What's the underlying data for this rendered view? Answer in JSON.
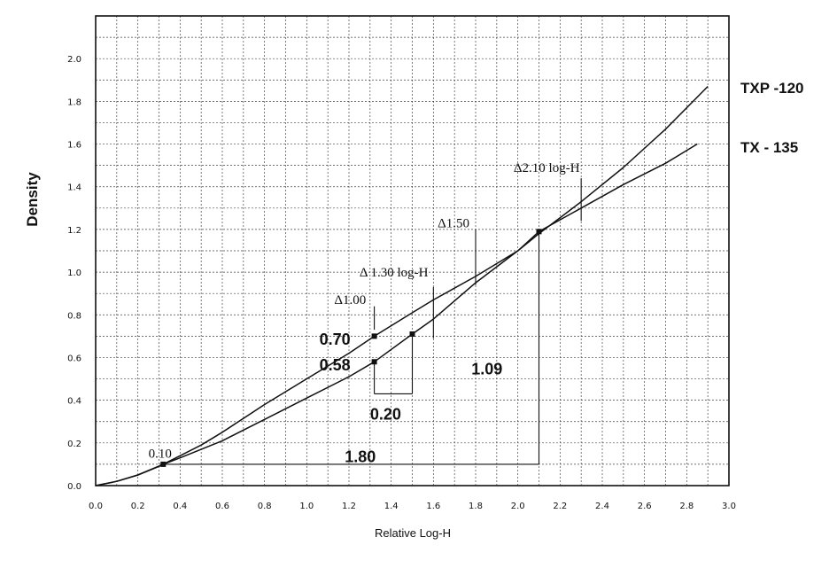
{
  "chart_data": {
    "type": "line",
    "title": "",
    "xlabel": "Relative Log-H",
    "ylabel": "Density",
    "xlim": [
      0.0,
      3.0
    ],
    "ylim": [
      0.0,
      2.2
    ],
    "grid": true,
    "grid_minor_step_x": 0.1,
    "grid_minor_step_y": 0.1,
    "x_ticks": [
      "0.0",
      "0.2",
      "0.4",
      "0.6",
      "0.8",
      "1.0",
      "1.2",
      "1.4",
      "1.6",
      "1.8",
      "2.0",
      "2.2",
      "2.4",
      "2.6",
      "2.8",
      "3.0"
    ],
    "y_ticks": [
      "0.0",
      "0.2",
      "0.4",
      "0.6",
      "0.8",
      "1.0",
      "1.2",
      "1.4",
      "1.6",
      "1.8",
      "2.0"
    ],
    "series": [
      {
        "name": "TXP -120",
        "x": [
          0.0,
          0.1,
          0.2,
          0.3,
          0.4,
          0.5,
          0.6,
          0.8,
          1.0,
          1.2,
          1.32,
          1.5,
          1.6,
          1.8,
          2.0,
          2.1,
          2.3,
          2.5,
          2.7,
          2.9
        ],
        "y": [
          0.0,
          0.02,
          0.05,
          0.09,
          0.14,
          0.19,
          0.25,
          0.38,
          0.5,
          0.62,
          0.7,
          0.81,
          0.87,
          0.98,
          1.1,
          1.18,
          1.33,
          1.49,
          1.67,
          1.87
        ]
      },
      {
        "name": "TX - 135",
        "x": [
          0.0,
          0.1,
          0.2,
          0.32,
          0.4,
          0.6,
          0.8,
          1.0,
          1.2,
          1.32,
          1.5,
          1.6,
          1.8,
          2.0,
          2.1,
          2.3,
          2.5,
          2.7,
          2.85
        ],
        "y": [
          0.0,
          0.02,
          0.05,
          0.1,
          0.13,
          0.21,
          0.31,
          0.41,
          0.51,
          0.58,
          0.71,
          0.78,
          0.95,
          1.1,
          1.19,
          1.3,
          1.41,
          1.51,
          1.6
        ]
      }
    ],
    "points": [
      {
        "x": 0.32,
        "y": 0.1
      },
      {
        "x": 1.32,
        "y": 0.7
      },
      {
        "x": 1.32,
        "y": 0.58
      },
      {
        "x": 1.5,
        "y": 0.71
      },
      {
        "x": 2.1,
        "y": 1.19
      }
    ],
    "annotations": [
      {
        "text": "0.10",
        "x": 0.25,
        "y": 0.13,
        "style": "serif"
      },
      {
        "text": "Δ1.00",
        "x": 1.13,
        "y": 0.85,
        "style": "serif"
      },
      {
        "text": "Δ 1.30 log-H",
        "x": 1.25,
        "y": 0.98,
        "style": "serif"
      },
      {
        "text": "Δ1.50",
        "x": 1.62,
        "y": 1.21,
        "style": "serif"
      },
      {
        "text": "Δ2.10 log-H",
        "x": 1.98,
        "y": 1.47,
        "style": "serif"
      },
      {
        "text": "0.70",
        "x": 1.06,
        "y": 0.66,
        "style": "bold"
      },
      {
        "text": "0.58",
        "x": 1.06,
        "y": 0.54,
        "style": "bold"
      },
      {
        "text": "0.20",
        "x": 1.3,
        "y": 0.31,
        "style": "bold"
      },
      {
        "text": "1.09",
        "x": 1.78,
        "y": 0.52,
        "style": "bold"
      },
      {
        "text": "1.80",
        "x": 1.18,
        "y": 0.11,
        "style": "bold"
      }
    ]
  }
}
